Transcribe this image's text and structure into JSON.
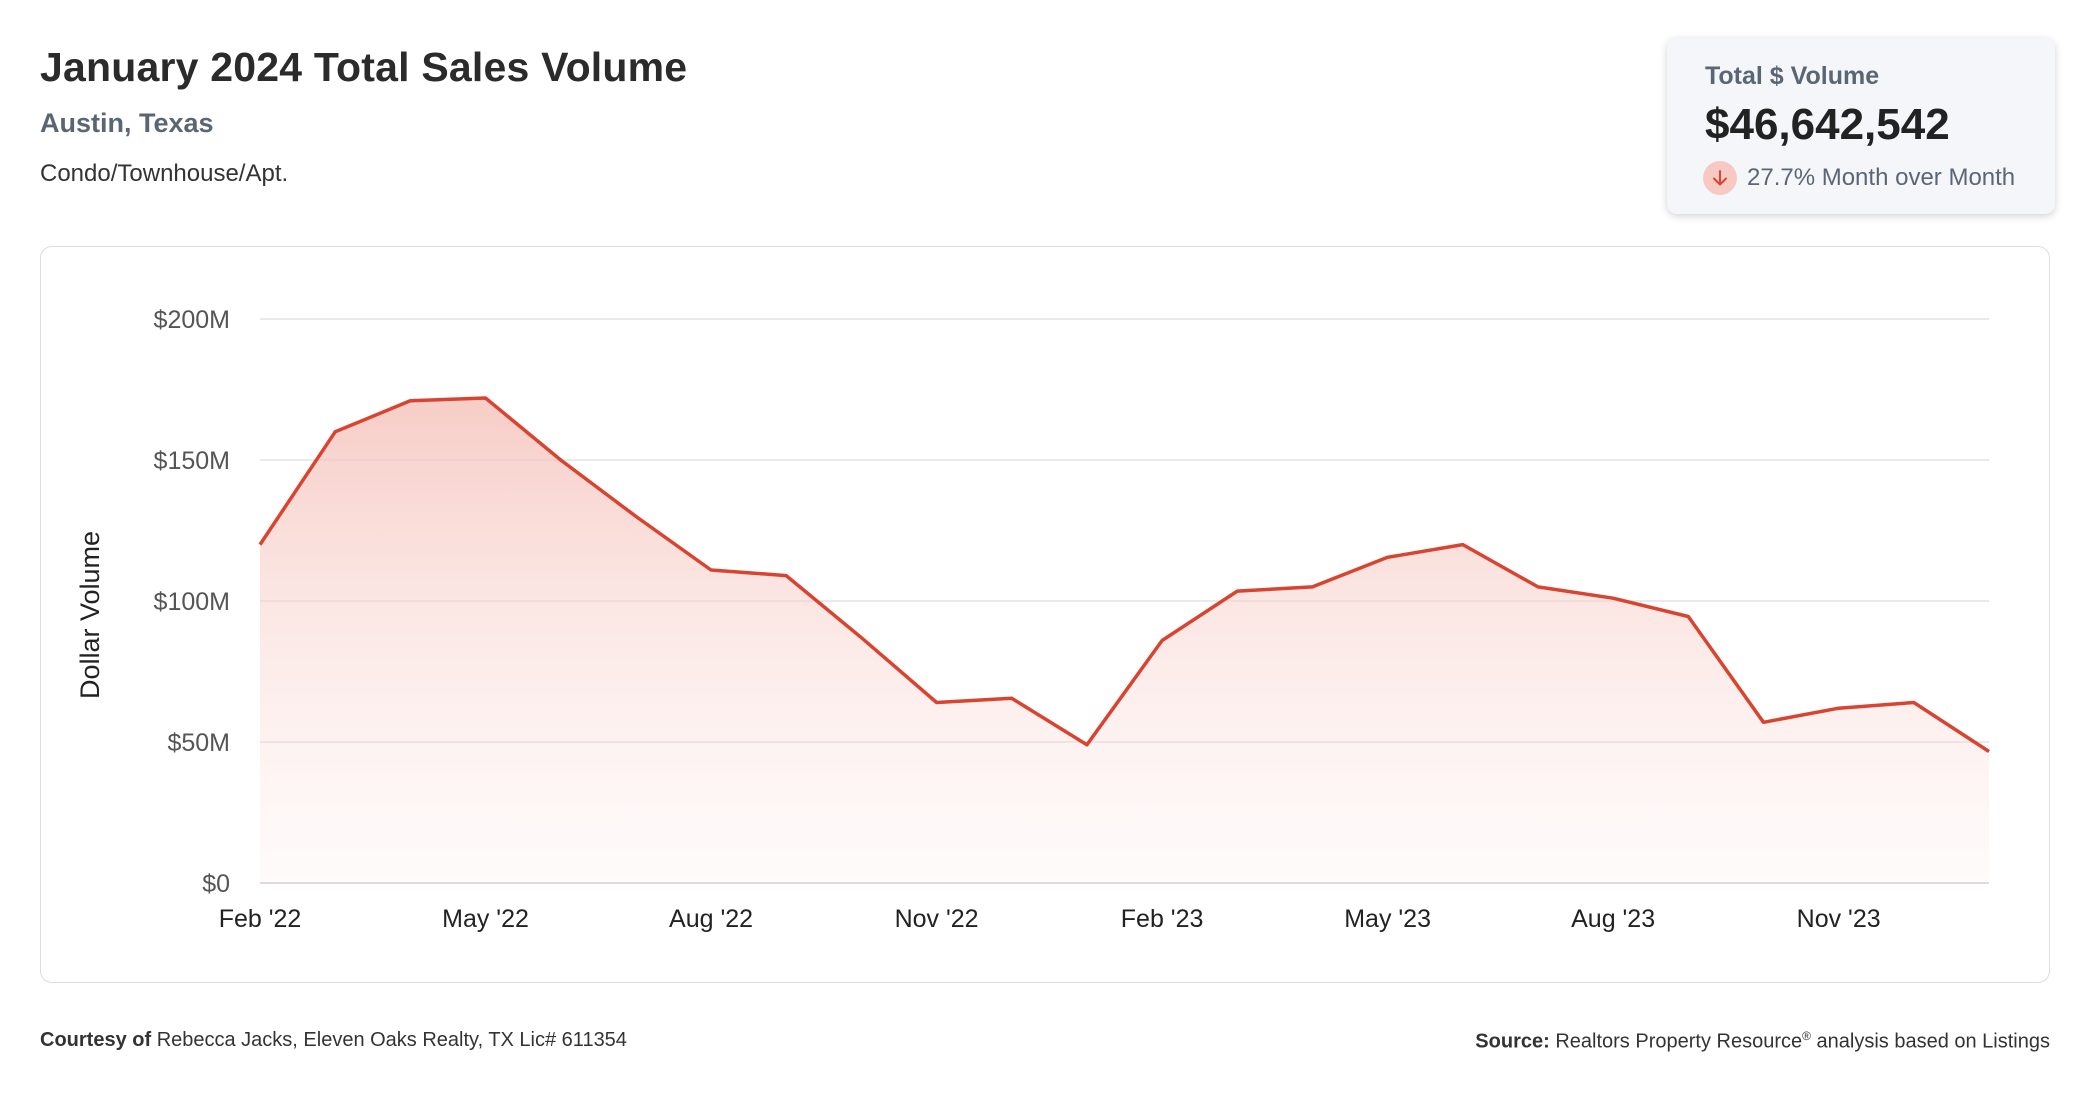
{
  "header": {
    "title": "January 2024 Total Sales Volume",
    "location": "Austin, Texas",
    "property_type": "Condo/Townhouse/Apt."
  },
  "kpi": {
    "label": "Total $ Volume",
    "value": "$46,642,542",
    "change": "27.7% Month over Month",
    "direction_icon": "arrow-down-icon"
  },
  "footer": {
    "courtesy_label": "Courtesy of",
    "courtesy_text": "Rebecca Jacks, Eleven Oaks Realty, TX Lic# 611354",
    "source_label": "Source:",
    "source_text_before": "Realtors Property Resource",
    "source_registered": "®",
    "source_text_after": " analysis based on Listings"
  },
  "colors": {
    "line": "#d94430",
    "fill_top": "#f6c9c3",
    "grid": "#e3e3e3",
    "tick_text": "#555555",
    "label_text": "#222222"
  },
  "chart_data": {
    "type": "area",
    "ylabel": "Dollar Volume",
    "xlabel": "",
    "ylim": [
      0,
      200000000
    ],
    "yticks": [
      0,
      50000000,
      100000000,
      150000000,
      200000000
    ],
    "ytick_labels": [
      "$0",
      "$50M",
      "$100M",
      "$150M",
      "$200M"
    ],
    "xticks": [
      "Feb '22",
      "May '22",
      "Aug '22",
      "Nov '22",
      "Feb '23",
      "May '23",
      "Aug '23",
      "Nov '23"
    ],
    "xtick_indices": [
      0,
      3,
      6,
      9,
      12,
      15,
      18,
      21
    ],
    "grid": true,
    "legend": "none",
    "x": [
      "Feb 2022",
      "Mar 2022",
      "Apr 2022",
      "May 2022",
      "Jun 2022",
      "Jul 2022",
      "Aug 2022",
      "Sep 2022",
      "Oct 2022",
      "Nov 2022",
      "Dec 2022",
      "Jan 2023",
      "Feb 2023",
      "Mar 2023",
      "Apr 2023",
      "May 2023",
      "Jun 2023",
      "Jul 2023",
      "Aug 2023",
      "Sep 2023",
      "Oct 2023",
      "Nov 2023",
      "Dec 2023",
      "Jan 2024"
    ],
    "values": [
      120000000,
      160000000,
      171000000,
      172000000,
      150000000,
      130000000,
      111000000,
      109000000,
      87000000,
      64000000,
      65500000,
      49000000,
      86000000,
      103500000,
      105000000,
      115500000,
      120000000,
      105000000,
      101000000,
      94500000,
      57000000,
      62000000,
      64000000,
      46642542
    ]
  }
}
